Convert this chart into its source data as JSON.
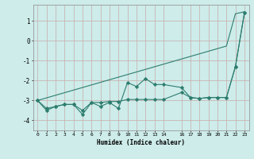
{
  "xlabel": "Humidex (Indice chaleur)",
  "x": [
    0,
    1,
    2,
    3,
    4,
    5,
    6,
    7,
    8,
    9,
    10,
    11,
    12,
    13,
    14,
    16,
    17,
    18,
    19,
    20,
    21,
    22,
    23
  ],
  "line_straight": [
    -3.0,
    -2.87,
    -2.74,
    -2.61,
    -2.48,
    -2.35,
    -2.22,
    -2.09,
    -1.96,
    -1.83,
    -1.7,
    -1.57,
    -1.44,
    -1.31,
    -1.18,
    -0.92,
    -0.79,
    -0.66,
    -0.53,
    -0.4,
    -0.27,
    1.35,
    1.45
  ],
  "line_jagged": [
    -3.0,
    -3.5,
    -3.3,
    -3.2,
    -3.2,
    -3.7,
    -3.1,
    -3.3,
    -3.1,
    -3.4,
    -2.1,
    -2.3,
    -1.9,
    -2.2,
    -2.2,
    -2.35,
    -2.85,
    -2.9,
    -2.85,
    -2.85,
    -2.85,
    -1.3,
    1.4
  ],
  "line_smooth": [
    -3.0,
    -3.4,
    -3.3,
    -3.2,
    -3.2,
    -3.5,
    -3.1,
    -3.1,
    -3.05,
    -3.05,
    -2.95,
    -2.95,
    -2.95,
    -2.95,
    -2.95,
    -2.6,
    -2.85,
    -2.9,
    -2.85,
    -2.85,
    -2.85,
    -1.3,
    1.4
  ],
  "line_color": "#2d7d6e",
  "bg_color": "#cdecea",
  "grid_color": "#c8aaaa",
  "ylim": [
    -4.5,
    1.8
  ],
  "yticks": [
    -4,
    -3,
    -2,
    -1,
    0,
    1
  ],
  "xlim": [
    -0.5,
    23.5
  ],
  "figsize": [
    3.2,
    2.0
  ],
  "dpi": 100
}
